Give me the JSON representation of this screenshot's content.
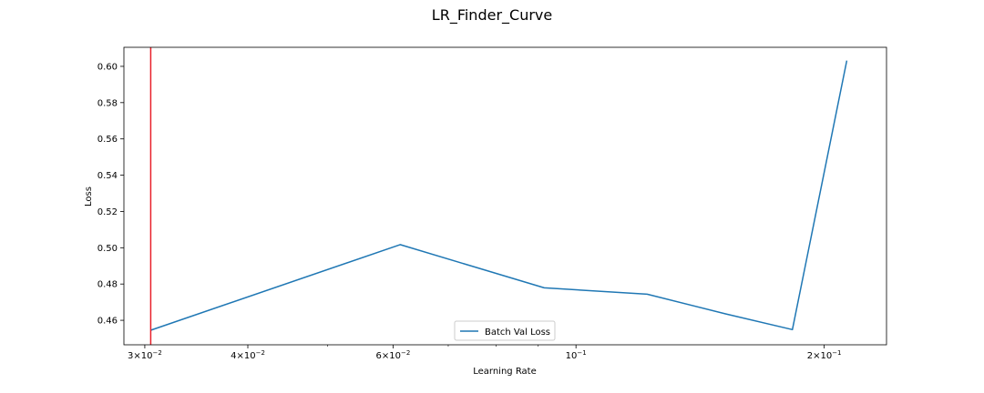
{
  "chart_data": {
    "type": "line",
    "title": "LR_Finder_Curve",
    "xlabel": "Learning Rate",
    "ylabel": "Loss",
    "xscale": "log",
    "xlim": [
      0.0283,
      0.238
    ],
    "ylim": [
      0.4465,
      0.6105
    ],
    "grid": false,
    "legend_position": "lower center",
    "x_ticks": [
      {
        "value": 0.03,
        "base": "3",
        "exp": "−2"
      },
      {
        "value": 0.04,
        "base": "4",
        "exp": "−2"
      },
      {
        "value": 0.06,
        "base": "6",
        "exp": "−2"
      },
      {
        "value": 0.1,
        "base": "",
        "exp": "−1"
      },
      {
        "value": 0.2,
        "base": "2",
        "exp": "−1"
      }
    ],
    "x_minor_ticks": [
      0.05,
      0.07,
      0.08,
      0.09
    ],
    "y_ticks": [
      {
        "value": 0.46,
        "label": "0.46"
      },
      {
        "value": 0.48,
        "label": "0.48"
      },
      {
        "value": 0.5,
        "label": "0.50"
      },
      {
        "value": 0.52,
        "label": "0.52"
      },
      {
        "value": 0.54,
        "label": "0.54"
      },
      {
        "value": 0.56,
        "label": "0.56"
      },
      {
        "value": 0.58,
        "label": "0.58"
      },
      {
        "value": 0.6,
        "label": "0.60"
      }
    ],
    "series": [
      {
        "name": "Batch Val Loss",
        "color": "#1f77b4",
        "x": [
          0.0305,
          0.0612,
          0.0915,
          0.122,
          0.152,
          0.183,
          0.213
        ],
        "y": [
          0.4545,
          0.5017,
          0.4779,
          0.4744,
          0.4635,
          0.4549,
          0.6032
        ]
      }
    ],
    "vline": {
      "x": 0.0305,
      "color": "#e8202a"
    }
  }
}
